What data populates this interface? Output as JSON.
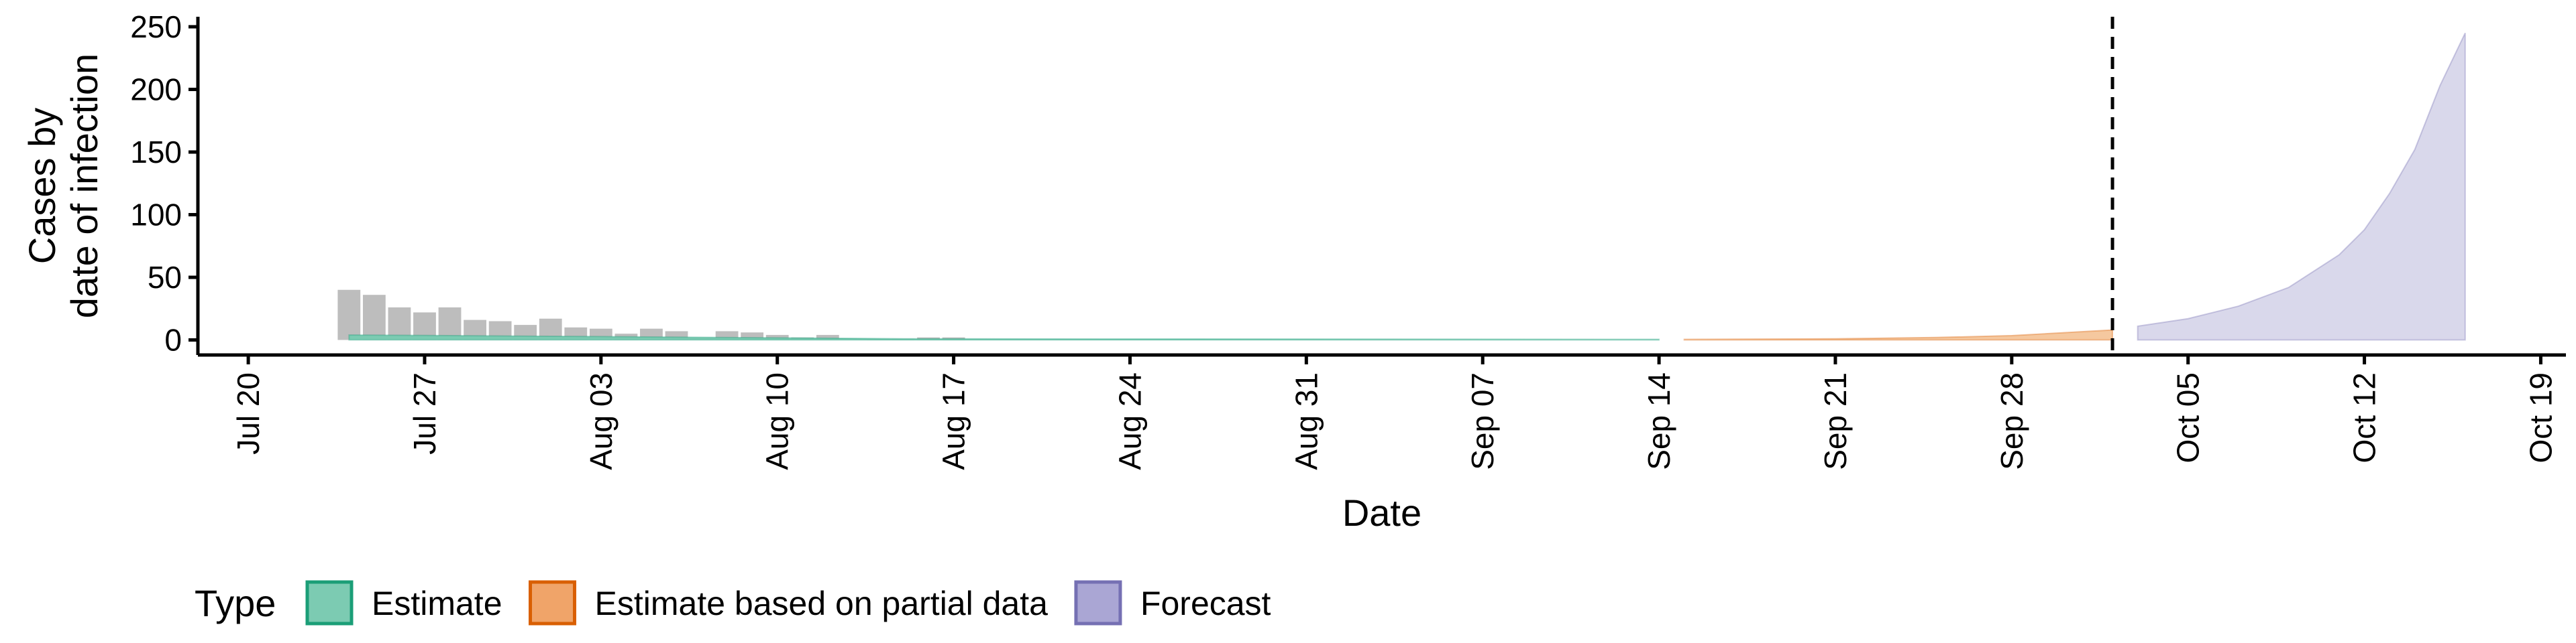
{
  "chart_data": {
    "type": "bar",
    "xlabel": "Date",
    "ylabel_lines": [
      "Cases by",
      "date of infection"
    ],
    "xlim": [
      "2020-07-18",
      "2020-10-20"
    ],
    "ylim": [
      -12,
      258
    ],
    "yticks": [
      0,
      50,
      100,
      150,
      200,
      250
    ],
    "yticks_labels": [
      "0",
      "50",
      "100",
      "150",
      "200",
      "250"
    ],
    "xticks": [
      "2020-07-20",
      "2020-07-27",
      "2020-08-03",
      "2020-08-10",
      "2020-08-17",
      "2020-08-24",
      "2020-08-31",
      "2020-09-07",
      "2020-09-14",
      "2020-09-21",
      "2020-09-28",
      "2020-10-05",
      "2020-10-12",
      "2020-10-19"
    ],
    "xticks_labels": [
      "Jul 20",
      "Jul 27",
      "Aug 03",
      "Aug 10",
      "Aug 17",
      "Aug 24",
      "Aug 31",
      "Sep 07",
      "Sep 14",
      "Sep 21",
      "Sep 28",
      "Oct 05",
      "Oct 12",
      "Oct 19"
    ],
    "forecast_date": "2020-10-02",
    "reported_cases": {
      "dates": [
        "2020-07-24",
        "2020-07-25",
        "2020-07-26",
        "2020-07-27",
        "2020-07-28",
        "2020-07-29",
        "2020-07-30",
        "2020-07-31",
        "2020-08-01",
        "2020-08-02",
        "2020-08-03",
        "2020-08-04",
        "2020-08-05",
        "2020-08-06",
        "2020-08-07",
        "2020-08-08",
        "2020-08-09",
        "2020-08-10",
        "2020-08-11",
        "2020-08-12",
        "2020-08-13",
        "2020-08-14",
        "2020-08-15",
        "2020-08-16",
        "2020-08-17"
      ],
      "values": [
        40,
        36,
        26,
        22,
        26,
        16,
        15,
        12,
        17,
        10,
        9,
        5,
        9,
        7,
        2,
        7,
        6,
        4,
        2,
        4,
        0,
        1,
        1,
        2,
        2
      ]
    },
    "series": [
      {
        "name": "Estimate",
        "color": "#1b9e77",
        "fill": "#7ccbb2",
        "dates": [
          "2020-07-24",
          "2020-08-01",
          "2020-08-15",
          "2020-09-14"
        ],
        "lower": [
          0,
          0,
          0,
          0
        ],
        "upper": [
          4,
          3,
          1,
          0.5
        ]
      },
      {
        "name": "Estimate based on partial data",
        "color": "#d95f02",
        "fill": "#f5c89f",
        "dates": [
          "2020-09-15",
          "2020-09-21",
          "2020-09-25",
          "2020-09-28",
          "2020-10-02"
        ],
        "lower": [
          0,
          0,
          0,
          0,
          0
        ],
        "upper": [
          0.5,
          1,
          2,
          3.5,
          8
        ]
      },
      {
        "name": "Forecast",
        "color": "#7570b3",
        "fill": "#d9d8eb",
        "dates": [
          "2020-10-03",
          "2020-10-05",
          "2020-10-07",
          "2020-10-09",
          "2020-10-11",
          "2020-10-12",
          "2020-10-13",
          "2020-10-14",
          "2020-10-15",
          "2020-10-16"
        ],
        "lower": [
          0,
          0,
          0,
          0,
          0,
          0,
          0,
          0,
          0,
          0
        ],
        "upper": [
          11,
          17,
          27,
          42,
          68,
          88,
          117,
          152,
          203,
          245
        ]
      }
    ],
    "legend": {
      "title": "Type",
      "position": "bottom-left",
      "items": [
        {
          "label": "Estimate",
          "fill": "#7ccbb2",
          "stroke": "#1b9e77"
        },
        {
          "label": "Estimate based on partial data",
          "fill": "#f0a469",
          "stroke": "#d95f02"
        },
        {
          "label": "Forecast",
          "fill": "#aaa6d4",
          "stroke": "#7570b3"
        }
      ]
    },
    "colors": {
      "reported_bars": "#bdbdbd",
      "forecast_line": "#000000"
    },
    "grid": false
  }
}
